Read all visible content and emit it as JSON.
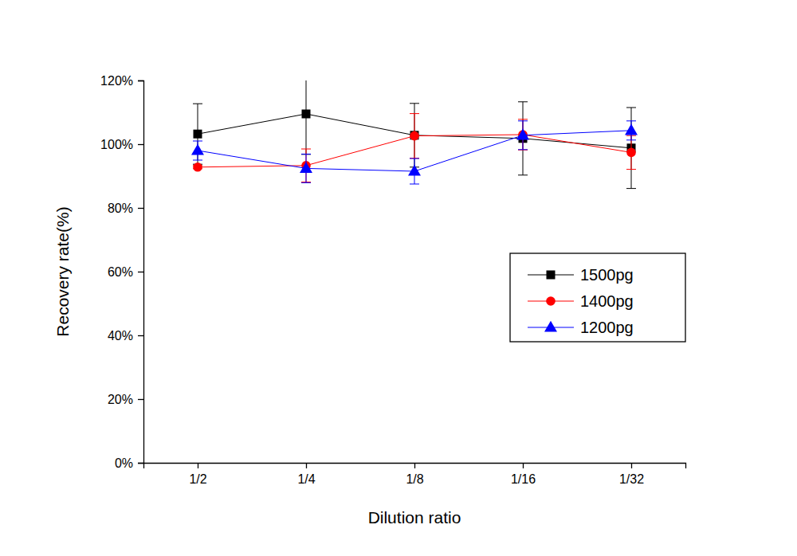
{
  "chart_data": {
    "type": "line",
    "x_label": "Dilution ratio",
    "y_label": "Recovery rate(%)",
    "categories": [
      "1/2",
      "1/4",
      "1/8",
      "1/16",
      "1/32"
    ],
    "ylim": [
      0,
      120
    ],
    "yticks": [
      {
        "value": 0,
        "label": "0%"
      },
      {
        "value": 20,
        "label": "20%"
      },
      {
        "value": 40,
        "label": "40%"
      },
      {
        "value": 60,
        "label": "60%"
      },
      {
        "value": 80,
        "label": "80%"
      },
      {
        "value": 100,
        "label": "100%"
      },
      {
        "value": 120,
        "label": "120%"
      }
    ],
    "grid": false,
    "legend": "right",
    "series": [
      {
        "name": "1500pg",
        "color": "#000000",
        "marker": "square",
        "values": [
          103.2,
          109.5,
          102.8,
          101.8,
          98.8
        ],
        "errors": [
          9.5,
          12.7,
          10,
          11.5,
          12.7
        ]
      },
      {
        "name": "1400pg",
        "color": "#ff0000",
        "marker": "circle",
        "values": [
          92.8,
          93.3,
          102.6,
          103,
          97.4
        ],
        "errors": [
          0.5,
          5.2,
          7,
          4.8,
          5.3
        ]
      },
      {
        "name": "1200pg",
        "color": "#0000ff",
        "marker": "triangle",
        "values": [
          98,
          92.4,
          91.5,
          102.8,
          104.3
        ],
        "errors": [
          3,
          4.5,
          4,
          4.5,
          3
        ]
      }
    ]
  }
}
